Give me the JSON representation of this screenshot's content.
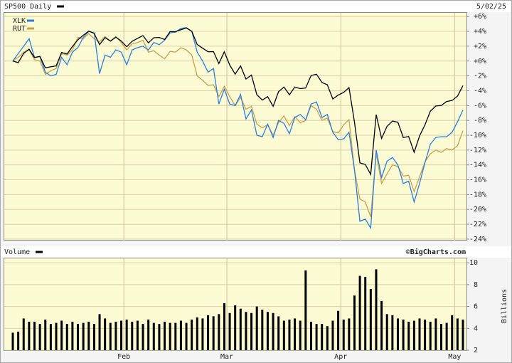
{
  "chart_data": [
    {
      "type": "line",
      "title": "SP500 Daily",
      "subtitle": "5/02/25",
      "ylim": [
        -24.2,
        6.5
      ],
      "yticks": [
        {
          "value": 6,
          "label": "+6%"
        },
        {
          "value": 4,
          "label": "+4%"
        },
        {
          "value": 2,
          "label": "+2%"
        },
        {
          "value": 0,
          "label": "+0%"
        },
        {
          "value": -2,
          "label": "-2%"
        },
        {
          "value": -4,
          "label": "-4%"
        },
        {
          "value": -6,
          "label": "-6%"
        },
        {
          "value": -8,
          "label": "-8%"
        },
        {
          "value": -10,
          "label": "-10%"
        },
        {
          "value": -12,
          "label": "-12%"
        },
        {
          "value": -14,
          "label": "-14%"
        },
        {
          "value": -16,
          "label": "-16%"
        },
        {
          "value": -18,
          "label": "-18%"
        },
        {
          "value": -20,
          "label": "-20%"
        },
        {
          "value": -22,
          "label": "-22%"
        },
        {
          "value": -24,
          "label": "-24%"
        }
      ],
      "grid": true,
      "series": [
        {
          "name": "SP500 Daily",
          "color": "#000000",
          "values": [
            0,
            -0.22,
            1.03,
            1.6,
            0.47,
            0.62,
            -0.93,
            -0.77,
            -0.66,
            1.16,
            0.95,
            1.96,
            2.85,
            3.48,
            4.03,
            3.73,
            2.22,
            3.16,
            2.68,
            3.22,
            2.7,
            1.92,
            2.66,
            3.06,
            3.43,
            2.46,
            3.14,
            3.18,
            2.9,
            3.97,
            3.96,
            4.22,
            4.46,
            4.01,
            2.24,
            1.73,
            1.25,
            1.27,
            -0.34,
            1.24,
            -0.54,
            -1.76,
            -0.66,
            -2.43,
            -1.89,
            -4.54,
            -5.26,
            -4.8,
            -6.12,
            -4.13,
            -3.51,
            -4.54,
            -3.51,
            -3.72,
            -3.64,
            -1.94,
            -1.78,
            -2.88,
            -3.2,
            -5.11,
            -4.59,
            -4.23,
            -3.58,
            -8.25,
            -13.73,
            -13.93,
            -15.28,
            -7.22,
            -10.43,
            -8.81,
            -8.09,
            -8.25,
            -10.3,
            -10.18,
            -12.3,
            -10.1,
            -8.6,
            -6.75,
            -6.06,
            -6.0,
            -5.45,
            -5.32,
            -4.72,
            -3.31
          ]
        },
        {
          "name": "XLK",
          "color": "#2a7de1",
          "values": [
            0,
            1.0,
            2.0,
            3.0,
            0.5,
            0.6,
            -1.5,
            -2.0,
            -1.8,
            0.5,
            -0.5,
            1.2,
            1.8,
            3.2,
            4.0,
            3.8,
            -1.7,
            0.8,
            0.5,
            1.5,
            1.2,
            -0.5,
            1.5,
            1.8,
            2.0,
            1.5,
            2.5,
            2.2,
            2.8,
            3.8,
            3.9,
            4.4,
            4.5,
            4.0,
            1.2,
            0.0,
            -1.5,
            -1.0,
            -5.8,
            -3.8,
            -5.8,
            -6.0,
            -4.5,
            -7.8,
            -6.6,
            -10.0,
            -10.2,
            -8.5,
            -10.3,
            -8.0,
            -8.4,
            -9.8,
            -7.6,
            -7.2,
            -7.9,
            -5.8,
            -5.5,
            -7.6,
            -7.2,
            -9.6,
            -10.6,
            -10.5,
            -9.6,
            -14.7,
            -21.6,
            -21.3,
            -22.5,
            -12.0,
            -15.7,
            -13.5,
            -13.0,
            -14.0,
            -16.5,
            -16.2,
            -19.0,
            -16.5,
            -13.7,
            -11.2,
            -10.3,
            -10.2,
            -10.2,
            -9.6,
            -8.2,
            -6.6
          ]
        },
        {
          "name": "RUT",
          "color": "#c9a04a",
          "values": [
            0,
            0.5,
            1.2,
            1.5,
            0.2,
            0.0,
            -1.8,
            -1.3,
            -1.0,
            1.0,
            0.8,
            1.5,
            3.2,
            3.0,
            3.7,
            3.0,
            2.6,
            3.3,
            2.7,
            3.3,
            2.5,
            1.5,
            2.3,
            2.5,
            2.8,
            1.2,
            1.4,
            0.8,
            0.3,
            1.3,
            1.2,
            1.8,
            1.5,
            0.8,
            -2.0,
            -2.6,
            -3.3,
            -3.2,
            -4.8,
            -3.4,
            -4.8,
            -6.0,
            -4.9,
            -6.5,
            -6.1,
            -8.5,
            -9.0,
            -8.6,
            -10.0,
            -8.3,
            -7.4,
            -8.7,
            -7.5,
            -8.3,
            -8.0,
            -6.0,
            -6.5,
            -8.0,
            -7.7,
            -9.5,
            -9.7,
            -8.6,
            -7.9,
            -14.7,
            -18.6,
            -19.0,
            -21.0,
            -12.5,
            -16.5,
            -15.2,
            -14.0,
            -14.2,
            -15.5,
            -15.4,
            -17.6,
            -15.6,
            -13.6,
            -12.5,
            -12.0,
            -12.3,
            -11.8,
            -12.0,
            -11.4,
            -9.4
          ]
        }
      ]
    },
    {
      "type": "bar",
      "source": "©BigCharts.com",
      "y_label": "Billions",
      "ylim": [
        2,
        10.4
      ],
      "yticks": [
        10,
        8,
        6,
        4,
        2
      ],
      "grid": true,
      "categories": [
        null,
        null,
        null,
        null,
        null,
        null,
        null,
        null,
        null,
        null,
        null,
        null,
        null,
        null,
        null,
        null,
        null,
        null,
        null,
        null,
        null,
        "Feb",
        null,
        null,
        null,
        null,
        null,
        null,
        null,
        null,
        null,
        null,
        null,
        null,
        null,
        null,
        null,
        null,
        null,
        null,
        "Mar",
        null,
        null,
        null,
        null,
        null,
        null,
        null,
        null,
        null,
        null,
        null,
        null,
        null,
        null,
        null,
        null,
        null,
        null,
        null,
        null,
        "Apr",
        null,
        null,
        null,
        null,
        null,
        null,
        null,
        null,
        null,
        null,
        null,
        null,
        null,
        null,
        null,
        null,
        null,
        null,
        null,
        null,
        "May",
        null
      ],
      "series": [
        {
          "name": "Volume",
          "color": "#000000",
          "values": [
            3.6,
            3.7,
            4.9,
            4.6,
            4.6,
            4.4,
            4.8,
            4.4,
            4.5,
            4.7,
            4.4,
            4.6,
            4.4,
            4.5,
            4.6,
            4.4,
            5.3,
            4.9,
            4.5,
            4.6,
            4.7,
            4.8,
            4.6,
            4.7,
            4.4,
            4.8,
            4.5,
            4.4,
            4.6,
            4.5,
            4.5,
            4.7,
            4.5,
            4.8,
            5.0,
            4.9,
            5.2,
            5.1,
            5.3,
            6.3,
            5.4,
            6.1,
            5.8,
            5.5,
            5.4,
            6.0,
            5.7,
            5.5,
            5.4,
            5.1,
            4.7,
            4.8,
            4.9,
            4.7,
            9.3,
            4.6,
            4.4,
            4.4,
            4.2,
            4.7,
            5.6,
            4.8,
            4.9,
            7.0,
            8.8,
            8.7,
            7.6,
            9.4,
            6.5,
            5.3,
            5.2,
            4.9,
            4.8,
            4.6,
            4.7,
            4.9,
            4.8,
            4.6,
            4.9,
            4.4,
            4.5,
            5.2,
            4.9,
            4.8
          ]
        }
      ]
    }
  ]
}
